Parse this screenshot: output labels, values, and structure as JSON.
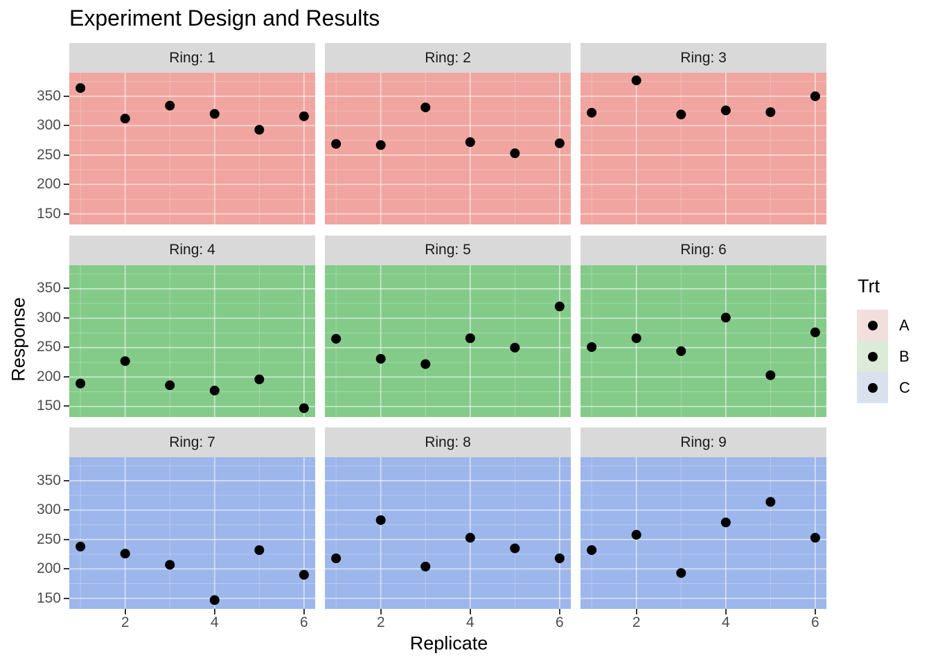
{
  "title": "Experiment Design and Results",
  "axes": {
    "x_label": "Replicate",
    "y_label": "Response",
    "x_ticks": [
      2,
      4,
      6
    ],
    "x_minor": [
      1,
      3,
      5
    ],
    "y_ticks": [
      150,
      200,
      250,
      300,
      350
    ],
    "y_minor": [
      175,
      225,
      275,
      325,
      375
    ]
  },
  "legend": {
    "title": "Trt",
    "items": [
      {
        "label": "A",
        "swatch": "#f2dfdd"
      },
      {
        "label": "B",
        "swatch": "#dcead8"
      },
      {
        "label": "C",
        "swatch": "#dae1ee"
      }
    ]
  },
  "colors": {
    "panel_fill": {
      "A": "#f0a5a0",
      "B": "#84cb89",
      "C": "#9db6eb"
    },
    "strip_bg": "#d9d9d9",
    "strip_text": "#1a1a1a",
    "tick_label": "#4d4d4d",
    "tick_mark": "#333333",
    "grid_major": "rgba(255,255,255,0.55)",
    "grid_minor": "rgba(255,255,255,0.28)",
    "point": "#000000"
  },
  "chart_data": {
    "type": "scatter",
    "title": "Experiment Design and Results",
    "xlabel": "Replicate",
    "ylabel": "Response",
    "facet_variable": "Ring",
    "color_variable": "Trt",
    "x_domain": [
      0.75,
      6.25
    ],
    "y_domain": [
      132,
      390
    ],
    "grid": true,
    "legend_position": "right",
    "facets": [
      {
        "label": "Ring: 1",
        "trt": "A",
        "x": [
          1,
          2,
          3,
          4,
          5,
          6
        ],
        "y": [
          364,
          312,
          334,
          320,
          293,
          316
        ]
      },
      {
        "label": "Ring: 2",
        "trt": "A",
        "x": [
          1,
          2,
          3,
          4,
          5,
          6
        ],
        "y": [
          269,
          267,
          331,
          272,
          253,
          270
        ]
      },
      {
        "label": "Ring: 3",
        "trt": "A",
        "x": [
          1,
          2,
          3,
          4,
          5,
          6
        ],
        "y": [
          322,
          377,
          319,
          326,
          323,
          350
        ]
      },
      {
        "label": "Ring: 4",
        "trt": "B",
        "x": [
          1,
          2,
          3,
          4,
          5,
          6
        ],
        "y": [
          189,
          227,
          186,
          177,
          196,
          147
        ]
      },
      {
        "label": "Ring: 5",
        "trt": "B",
        "x": [
          1,
          2,
          3,
          4,
          5,
          6
        ],
        "y": [
          265,
          231,
          222,
          266,
          250,
          320
        ]
      },
      {
        "label": "Ring: 6",
        "trt": "B",
        "x": [
          1,
          2,
          3,
          4,
          5,
          6
        ],
        "y": [
          251,
          266,
          244,
          301,
          203,
          276
        ]
      },
      {
        "label": "Ring: 7",
        "trt": "C",
        "x": [
          1,
          2,
          3,
          4,
          5,
          6
        ],
        "y": [
          238,
          226,
          207,
          147,
          232,
          190
        ]
      },
      {
        "label": "Ring: 8",
        "trt": "C",
        "x": [
          1,
          2,
          3,
          4,
          5,
          6
        ],
        "y": [
          218,
          283,
          204,
          253,
          235,
          218
        ]
      },
      {
        "label": "Ring: 9",
        "trt": "C",
        "x": [
          1,
          2,
          3,
          4,
          5,
          6
        ],
        "y": [
          232,
          258,
          193,
          279,
          314,
          253
        ]
      }
    ]
  }
}
